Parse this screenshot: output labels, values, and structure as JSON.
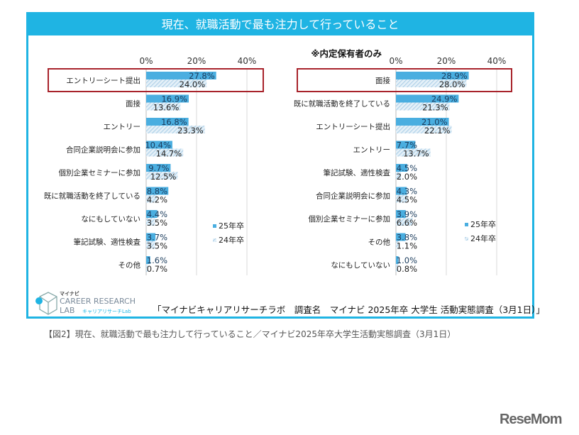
{
  "title": "現在、就職活動で最も注力して行っていること",
  "source": "「マイナビキャリアリサーチラボ　調査名　マイナビ 2025年卒 大学生 活動実態調査（3月1日）」",
  "caption": "【図2】現在、就職活動で最も注力して行っていること／マイナビ2025年卒大学生活動実態調査（3月1日）",
  "logo": {
    "line1": "マイナビ",
    "line2": "CAREER RESEARCH",
    "line3": "LAB",
    "line4": "キャリアリサーチLab"
  },
  "watermark": "ReseMom",
  "colors": {
    "accent": "#1fb4e3",
    "bar25": "#4aaee0",
    "bar24_hatch": "#a9cde6",
    "highlight": "#a8232b"
  },
  "chart_data": [
    {
      "type": "bar",
      "orientation": "horizontal",
      "subtitle": "",
      "xlim": [
        0,
        40
      ],
      "ticks": [
        "0%",
        "20%",
        "40%"
      ],
      "grid": true,
      "legend": "bottom-right",
      "highlight": "エントリーシート提出",
      "categories": [
        "エントリーシート提出",
        "面接",
        "エントリー",
        "合同企業説明会に参加",
        "個別企業セミナーに参加",
        "既に就職活動を終了している",
        "なにもしていない",
        "筆記試験、適性検査",
        "その他"
      ],
      "series": [
        {
          "name": "25年卒",
          "values": [
            27.8,
            16.9,
            16.8,
            10.4,
            9.7,
            8.8,
            4.4,
            3.7,
            1.6
          ]
        },
        {
          "name": "24年卒",
          "values": [
            24.0,
            13.6,
            23.3,
            14.7,
            12.5,
            4.2,
            3.5,
            3.5,
            0.7
          ]
        }
      ]
    },
    {
      "type": "bar",
      "orientation": "horizontal",
      "subtitle": "※内定保有者のみ",
      "xlim": [
        0,
        40
      ],
      "ticks": [
        "0%",
        "20%",
        "40%"
      ],
      "grid": true,
      "legend": "bottom-right",
      "highlight": "面接",
      "categories": [
        "面接",
        "既に就職活動を終了している",
        "エントリーシート提出",
        "エントリー",
        "筆記試験、適性検査",
        "合同企業説明会に参加",
        "個別企業セミナーに参加",
        "その他",
        "なにもしていない"
      ],
      "series": [
        {
          "name": "25年卒",
          "values": [
            28.9,
            24.9,
            21.0,
            7.7,
            4.5,
            4.3,
            3.9,
            3.8,
            1.0
          ]
        },
        {
          "name": "24年卒",
          "values": [
            28.0,
            21.3,
            22.1,
            13.7,
            2.0,
            4.5,
            6.6,
            1.1,
            0.8
          ]
        }
      ]
    }
  ]
}
